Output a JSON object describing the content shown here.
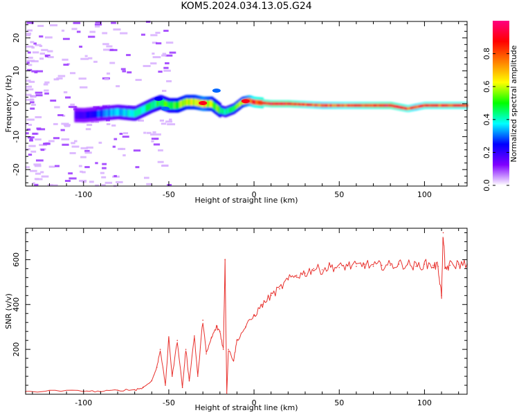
{
  "title": "KOM5.2024.034.13.05.G24",
  "chart_data": [
    {
      "type": "heatmap",
      "xlabel": "Height of straight line (km)",
      "ylabel": "Frequency (Hz)",
      "xlim": [
        -134,
        125
      ],
      "ylim": [
        -25,
        25
      ],
      "x_ticks": [
        -100,
        -50,
        0,
        50,
        100
      ],
      "y_ticks": [
        -20,
        -10,
        0,
        10,
        20
      ],
      "colorbar": {
        "label": "Normalized spectral amplitude",
        "range": [
          0.0,
          1.0
        ],
        "ticks": [
          "0.0",
          "0.2",
          "0.4",
          "0.6",
          "0.8"
        ],
        "colors": [
          "#ffffff",
          "#8000ff",
          "#0000ff",
          "#00ffff",
          "#00ff00",
          "#ffff00",
          "#ff8000",
          "#ff0000",
          "#ff0080"
        ]
      },
      "ridge": {
        "x": [
          -134,
          -100,
          -90,
          -80,
          -70,
          -60,
          -55,
          -50,
          -45,
          -40,
          -35,
          -30,
          -25,
          -20,
          -17,
          -12,
          -7,
          -3,
          0,
          10,
          20,
          40,
          60,
          80,
          90,
          95,
          100,
          105,
          110,
          115,
          125
        ],
        "freq": [
          -3,
          -3.5,
          -3,
          -2.5,
          -3,
          -0.5,
          0.5,
          -0.5,
          -0.5,
          0.5,
          0.5,
          0,
          0,
          -2,
          -2.5,
          -1.5,
          0.5,
          1,
          0.5,
          0,
          0,
          -0.5,
          -0.5,
          -0.5,
          -1.5,
          -1,
          -0.5,
          -0.5,
          -0.5,
          -0.5,
          -0.5
        ],
        "amplitude": [
          0.05,
          0.2,
          0.3,
          0.35,
          0.4,
          0.45,
          0.5,
          0.5,
          0.55,
          0.6,
          0.6,
          0.7,
          0.6,
          0.5,
          0.45,
          0.5,
          0.6,
          0.75,
          0.85,
          0.9,
          0.9,
          0.8,
          0.85,
          0.9,
          0.85,
          0.8,
          0.85,
          0.85,
          0.85,
          0.85,
          0.85
        ]
      }
    },
    {
      "type": "line",
      "xlabel": "Height of straight line (km)",
      "ylabel": "SNR (v/v)",
      "xlim": [
        -134,
        125
      ],
      "ylim": [
        0,
        740
      ],
      "x_ticks": [
        -100,
        -50,
        0,
        50,
        100
      ],
      "y_ticks": [
        200,
        400,
        600
      ],
      "color": "#e8302c",
      "x": [
        -134,
        -120,
        -100,
        -90,
        -80,
        -70,
        -65,
        -60,
        -57,
        -55,
        -52,
        -50,
        -48,
        -45,
        -42,
        -40,
        -38,
        -35,
        -33,
        -30,
        -28,
        -25,
        -22,
        -20,
        -18,
        -17,
        -16,
        -15,
        -12,
        -10,
        -5,
        0,
        5,
        10,
        15,
        20,
        25,
        30,
        35,
        40,
        45,
        50,
        55,
        60,
        65,
        70,
        75,
        80,
        85,
        90,
        95,
        100,
        105,
        108,
        110,
        111,
        112,
        115,
        120,
        125
      ],
      "y": [
        10,
        15,
        15,
        12,
        18,
        20,
        30,
        60,
        120,
        200,
        40,
        250,
        80,
        240,
        30,
        200,
        60,
        260,
        80,
        330,
        180,
        250,
        300,
        280,
        200,
        600,
        5,
        200,
        150,
        240,
        300,
        350,
        400,
        440,
        470,
        510,
        530,
        540,
        560,
        555,
        570,
        565,
        575,
        570,
        580,
        570,
        575,
        575,
        580,
        580,
        570,
        580,
        575,
        570,
        440,
        720,
        560,
        575,
        580,
        580
      ]
    }
  ]
}
